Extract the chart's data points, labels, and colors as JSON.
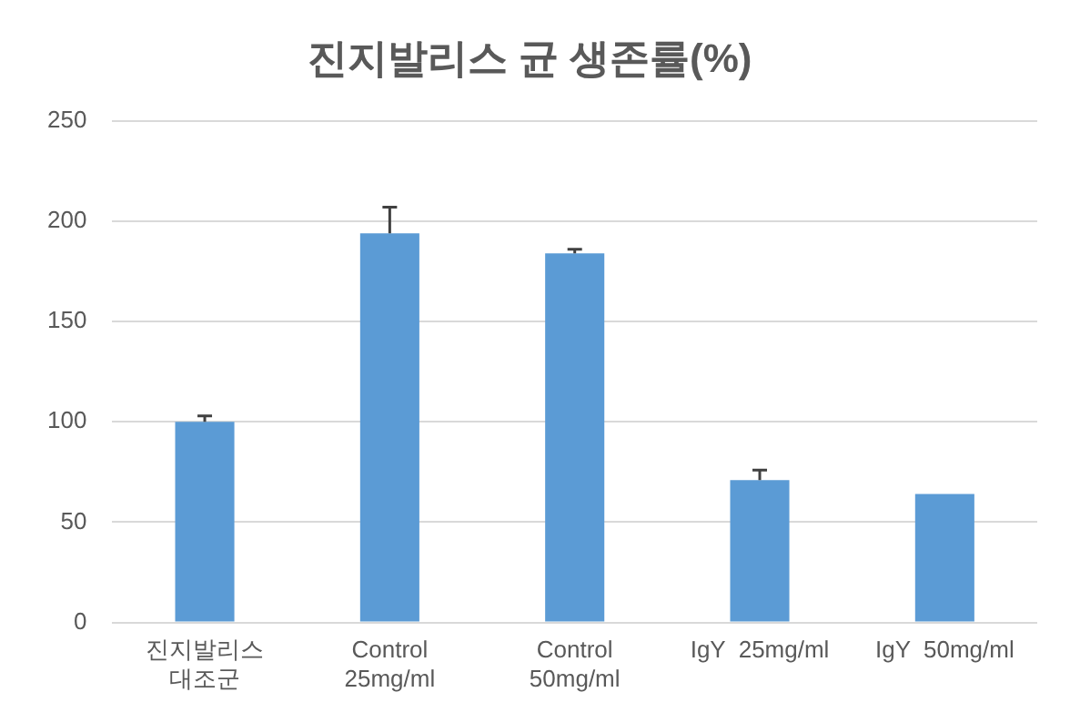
{
  "chart_data": {
    "type": "bar",
    "title": "진지발리스 균 생존률(%)",
    "categories": [
      "진지발리스\n대조군",
      "Control\n25mg/ml",
      "Control\n50mg/ml",
      "IgY  25mg/ml",
      "IgY  50mg/ml"
    ],
    "values": [
      100,
      194,
      184,
      71,
      64
    ],
    "errors": [
      [
        100,
        103
      ],
      [
        194,
        207
      ],
      [
        184,
        186
      ],
      [
        71,
        76
      ],
      null
    ],
    "color": "#5b9bd5",
    "ylim": [
      0,
      250
    ],
    "yticks": [
      0,
      50,
      100,
      150,
      200,
      250
    ],
    "grid": "y",
    "legend": false
  }
}
